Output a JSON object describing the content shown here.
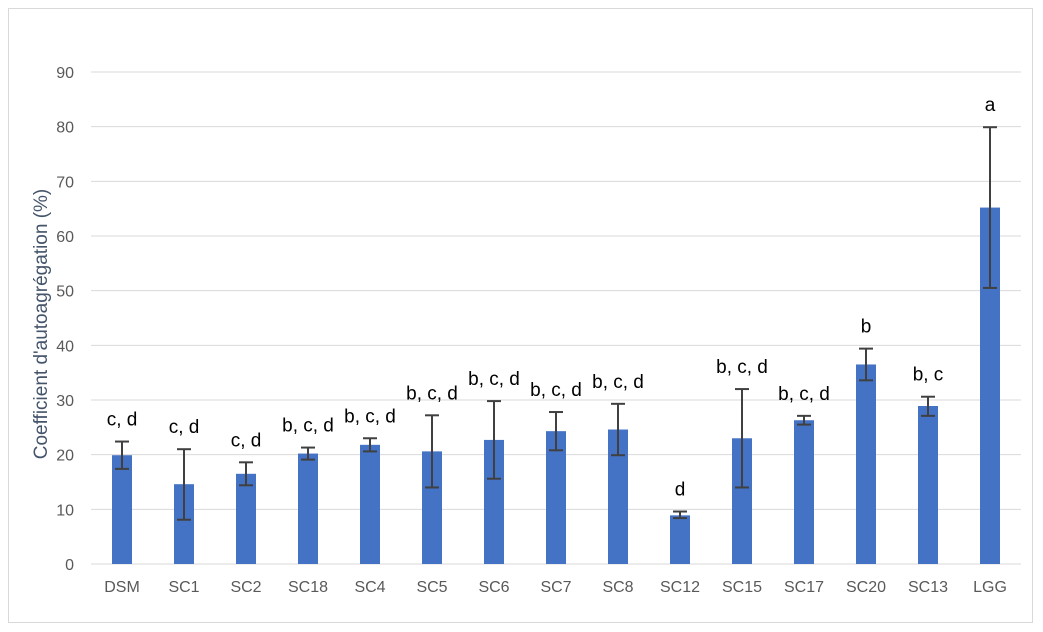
{
  "chart_data": {
    "type": "bar",
    "title": "",
    "xlabel": "",
    "ylabel": "Coefficient d'autoagrégation (%)",
    "ylim": [
      0,
      90
    ],
    "yticks": [
      0,
      10,
      20,
      30,
      40,
      50,
      60,
      70,
      80,
      90
    ],
    "grid": true,
    "bar_color": "#4472c4",
    "error_bar_color": "#404040",
    "categories": [
      "DSM",
      "SC1",
      "SC2",
      "SC18",
      "SC4",
      "SC5",
      "SC6",
      "SC7",
      "SC8",
      "SC12",
      "SC15",
      "SC17",
      "SC20",
      "SC13",
      "LGG"
    ],
    "values": [
      19.9,
      14.6,
      16.5,
      20.2,
      21.8,
      20.6,
      22.7,
      24.3,
      24.6,
      8.9,
      23.0,
      26.3,
      36.5,
      28.9,
      65.2
    ],
    "error_low": [
      17.4,
      8.1,
      14.4,
      19.1,
      20.6,
      14.0,
      15.6,
      20.8,
      19.9,
      8.4,
      14.0,
      25.5,
      33.6,
      27.1,
      50.5
    ],
    "error_high": [
      22.4,
      21.0,
      18.6,
      21.3,
      23.0,
      27.2,
      29.8,
      27.8,
      29.3,
      9.6,
      32.0,
      27.1,
      39.4,
      30.6,
      79.9
    ],
    "significance_labels": [
      "c, d",
      "c, d",
      "c, d",
      "b, c, d",
      "b, c, d",
      "b, c, d",
      "b, c, d",
      "b, c, d",
      "b, c, d",
      "d",
      "b, c, d",
      "b, c, d",
      "b",
      "b, c",
      "a"
    ]
  }
}
